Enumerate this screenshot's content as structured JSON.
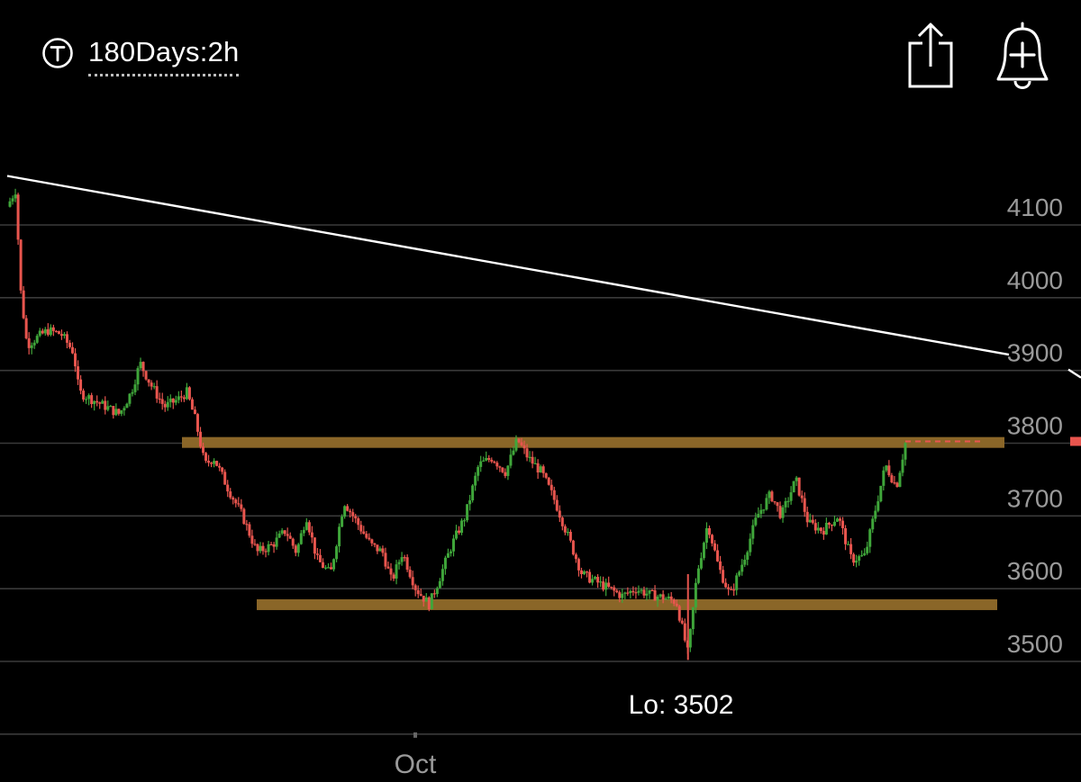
{
  "header": {
    "timeframe_label": "180Days:2h",
    "ticker_icon": "t-circle-icon",
    "share_icon": "share-icon",
    "alert_icon": "bell-plus-icon"
  },
  "colors": {
    "background": "#000000",
    "up": "#3fa63a",
    "down": "#e8554e",
    "band": "#8a6628",
    "trendline": "#ffffff",
    "grid": "#3a3a3a",
    "axis_text": "#9a9a9a",
    "last_price": "#e8554e"
  },
  "chart_data": {
    "type": "candlestick",
    "interval": "2h",
    "y_ticks": [
      3500,
      3600,
      3700,
      3800,
      3900,
      4000,
      4100
    ],
    "ylim": [
      3400,
      4160
    ],
    "x_tick_labels": [
      "Oct"
    ],
    "low_label": "Lo: 3502",
    "resistance_band": 3801,
    "support_band": 3578,
    "trendline": [
      {
        "x": 0,
        "y": 4160
      },
      {
        "x": 1,
        "y": 3918
      }
    ],
    "last_price": 3800,
    "path": [
      [
        0.0,
        4125
      ],
      [
        0.01,
        4150
      ],
      [
        0.014,
        4020
      ],
      [
        0.022,
        3935
      ],
      [
        0.033,
        3945
      ],
      [
        0.045,
        3955
      ],
      [
        0.06,
        3950
      ],
      [
        0.074,
        3925
      ],
      [
        0.08,
        3870
      ],
      [
        0.095,
        3860
      ],
      [
        0.11,
        3850
      ],
      [
        0.125,
        3840
      ],
      [
        0.138,
        3870
      ],
      [
        0.148,
        3910
      ],
      [
        0.16,
        3880
      ],
      [
        0.175,
        3850
      ],
      [
        0.19,
        3860
      ],
      [
        0.2,
        3870
      ],
      [
        0.21,
        3830
      ],
      [
        0.22,
        3770
      ],
      [
        0.23,
        3780
      ],
      [
        0.245,
        3740
      ],
      [
        0.262,
        3700
      ],
      [
        0.278,
        3650
      ],
      [
        0.295,
        3660
      ],
      [
        0.31,
        3680
      ],
      [
        0.322,
        3650
      ],
      [
        0.333,
        3700
      ],
      [
        0.345,
        3640
      ],
      [
        0.36,
        3620
      ],
      [
        0.375,
        3720
      ],
      [
        0.39,
        3690
      ],
      [
        0.405,
        3660
      ],
      [
        0.418,
        3650
      ],
      [
        0.428,
        3610
      ],
      [
        0.44,
        3650
      ],
      [
        0.455,
        3600
      ],
      [
        0.47,
        3578
      ],
      [
        0.48,
        3610
      ],
      [
        0.495,
        3660
      ],
      [
        0.51,
        3700
      ],
      [
        0.525,
        3770
      ],
      [
        0.54,
        3780
      ],
      [
        0.555,
        3760
      ],
      [
        0.568,
        3805
      ],
      [
        0.58,
        3780
      ],
      [
        0.595,
        3760
      ],
      [
        0.61,
        3720
      ],
      [
        0.625,
        3670
      ],
      [
        0.64,
        3620
      ],
      [
        0.655,
        3610
      ],
      [
        0.67,
        3600
      ],
      [
        0.685,
        3590
      ],
      [
        0.7,
        3600
      ],
      [
        0.715,
        3592
      ],
      [
        0.73,
        3588
      ],
      [
        0.745,
        3582
      ],
      [
        0.758,
        3510
      ],
      [
        0.768,
        3620
      ],
      [
        0.78,
        3690
      ],
      [
        0.792,
        3630
      ],
      [
        0.805,
        3590
      ],
      [
        0.82,
        3640
      ],
      [
        0.835,
        3700
      ],
      [
        0.85,
        3730
      ],
      [
        0.862,
        3700
      ],
      [
        0.878,
        3750
      ],
      [
        0.892,
        3690
      ],
      [
        0.908,
        3680
      ],
      [
        0.925,
        3700
      ],
      [
        0.94,
        3640
      ],
      [
        0.955,
        3645
      ],
      [
        0.965,
        3700
      ],
      [
        0.978,
        3770
      ],
      [
        0.99,
        3740
      ],
      [
        1.0,
        3800
      ]
    ]
  }
}
